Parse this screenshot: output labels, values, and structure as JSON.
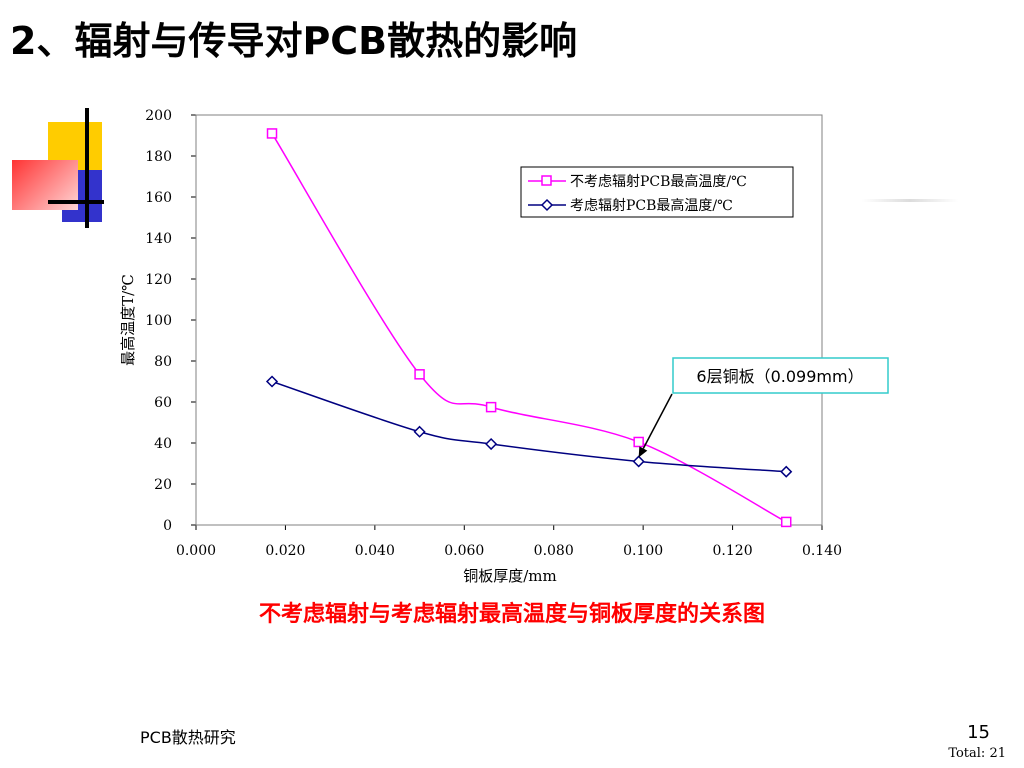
{
  "slide": {
    "title": "2、辐射与传导对PCB散热的影响",
    "caption": "不考虑辐射与考虑辐射最高温度与铜板厚度的关系图",
    "footer_left": "PCB散热研究",
    "page_number": "15",
    "total": "Total: 21"
  },
  "colors": {
    "series_no_radiation": "#ff00ff",
    "series_radiation": "#000080",
    "caption": "#ff0000",
    "annotation_border": "#33cccc",
    "deco_yellow": "#ffcc00",
    "deco_blue": "#3333cc",
    "deco_red": "#ff3333"
  },
  "chart_data": {
    "type": "line",
    "title": "",
    "xlabel": "铜板厚度/mm",
    "ylabel": "最高温度T/℃",
    "xlim": [
      0.0,
      0.14
    ],
    "ylim": [
      0,
      200
    ],
    "x_ticks": [
      "0.000",
      "0.020",
      "0.040",
      "0.060",
      "0.080",
      "0.100",
      "0.120",
      "0.140"
    ],
    "y_ticks": [
      "0",
      "20",
      "40",
      "60",
      "80",
      "100",
      "120",
      "140",
      "160",
      "180",
      "200"
    ],
    "grid": false,
    "legend_position": "top-right",
    "series": [
      {
        "name": "不考虑辐射PCB最高温度/℃",
        "marker": "square",
        "points": [
          [
            0.017,
            191
          ],
          [
            0.05,
            73.5
          ],
          [
            0.066,
            57.5
          ],
          [
            0.099,
            40.5
          ],
          [
            0.132,
            1.5
          ]
        ]
      },
      {
        "name": "考虑辐射PCB最高温度/℃",
        "marker": "diamond",
        "points": [
          [
            0.017,
            70
          ],
          [
            0.05,
            45.5
          ],
          [
            0.066,
            39.5
          ],
          [
            0.099,
            31
          ],
          [
            0.132,
            26
          ]
        ]
      }
    ],
    "annotation": {
      "text": "6层铜板（0.099mm）",
      "target": [
        0.099,
        33
      ]
    }
  }
}
